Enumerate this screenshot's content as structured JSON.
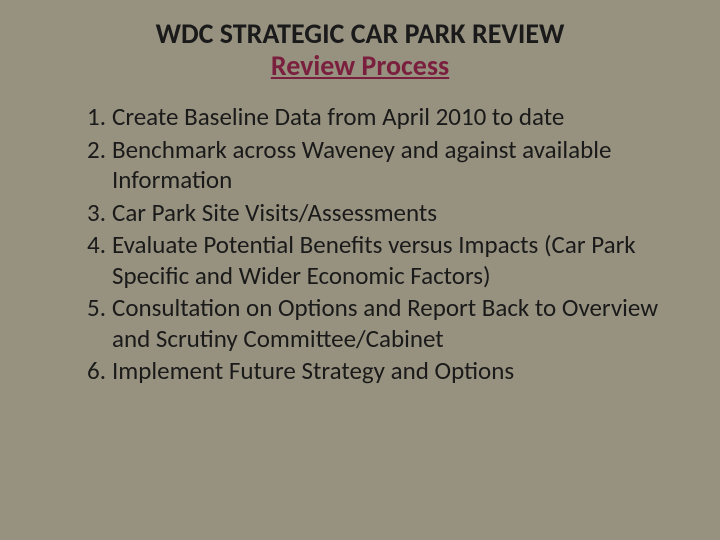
{
  "slide": {
    "background_color": "#97917f",
    "title": {
      "line1": "WDC STRATEGIC CAR PARK REVIEW",
      "line2": "Review Process",
      "line1_color": "#1a1a1a",
      "line2_color": "#7a1f3d",
      "fontsize": 28,
      "fontweight": 700
    },
    "list": {
      "text_color": "#1a1a1a",
      "fontsize": 25,
      "items": [
        "Create Baseline Data from April 2010 to date",
        "Benchmark across Waveney and against available Information",
        "Car Park Site Visits/Assessments",
        "Evaluate Potential Benefits versus Impacts (Car Park Specific and Wider Economic Factors)",
        "Consultation on Options and Report Back to Overview and Scrutiny Committee/Cabinet",
        "Implement Future Strategy and Options"
      ]
    }
  }
}
